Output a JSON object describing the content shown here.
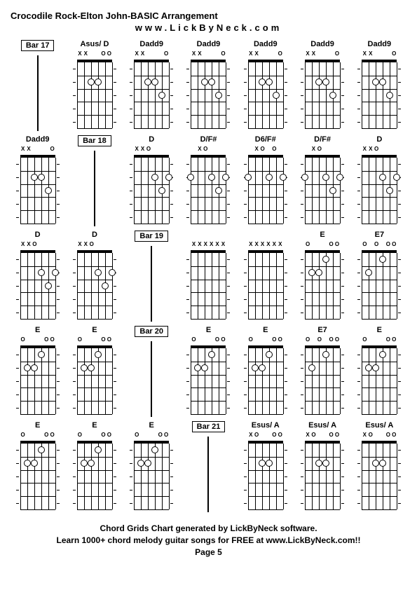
{
  "header": {
    "title": "Crocodile Rock-Elton John-BASIC Arrangement",
    "url": "www.LickByNeck.com"
  },
  "footer": {
    "line1": "Chord Grids Chart generated by LickByNeck software.",
    "line2": "Learn 1000+ chord melody guitar songs for FREE at www.LickByNeck.com!!",
    "page": "Page 5"
  },
  "diagram_style": {
    "num_frets": 5,
    "num_strings": 6,
    "nut_color": "#000000",
    "grid_color": "#000000",
    "dot_fill": "#ffffff",
    "dot_border": "#000000"
  },
  "cells": [
    {
      "type": "bar",
      "label": "Bar 17"
    },
    {
      "type": "chord",
      "label": "Asus/ D",
      "marks": [
        "X",
        "X",
        "",
        "",
        "O",
        "O"
      ],
      "dots": [
        [
          3,
          2
        ],
        [
          4,
          2
        ]
      ]
    },
    {
      "type": "chord",
      "label": "Dadd9",
      "marks": [
        "X",
        "X",
        "",
        "",
        "",
        "O"
      ],
      "dots": [
        [
          3,
          2
        ],
        [
          4,
          2
        ],
        [
          5,
          3
        ]
      ]
    },
    {
      "type": "chord",
      "label": "Dadd9",
      "marks": [
        "X",
        "X",
        "",
        "",
        "",
        "O"
      ],
      "dots": [
        [
          3,
          2
        ],
        [
          4,
          2
        ],
        [
          5,
          3
        ]
      ]
    },
    {
      "type": "chord",
      "label": "Dadd9",
      "marks": [
        "X",
        "X",
        "",
        "",
        "",
        "O"
      ],
      "dots": [
        [
          3,
          2
        ],
        [
          4,
          2
        ],
        [
          5,
          3
        ]
      ]
    },
    {
      "type": "chord",
      "label": "Dadd9",
      "marks": [
        "X",
        "X",
        "",
        "",
        "",
        "O"
      ],
      "dots": [
        [
          3,
          2
        ],
        [
          4,
          2
        ],
        [
          5,
          3
        ]
      ]
    },
    {
      "type": "chord",
      "label": "Dadd9",
      "marks": [
        "X",
        "X",
        "",
        "",
        "",
        "O"
      ],
      "dots": [
        [
          3,
          2
        ],
        [
          4,
          2
        ],
        [
          5,
          3
        ]
      ]
    },
    {
      "type": "chord",
      "label": "Dadd9",
      "marks": [
        "X",
        "X",
        "",
        "",
        "",
        "O"
      ],
      "dots": [
        [
          3,
          2
        ],
        [
          4,
          2
        ],
        [
          5,
          3
        ]
      ]
    },
    {
      "type": "bar",
      "label": "Bar 18"
    },
    {
      "type": "chord",
      "label": "D",
      "marks": [
        "X",
        "X",
        "O",
        "",
        "",
        ""
      ],
      "dots": [
        [
          4,
          2
        ],
        [
          5,
          3
        ],
        [
          6,
          2
        ]
      ]
    },
    {
      "type": "chord",
      "label": "D/F#",
      "marks": [
        "",
        "X",
        "O",
        "",
        "",
        ""
      ],
      "dots": [
        [
          1,
          2
        ],
        [
          4,
          2
        ],
        [
          5,
          3
        ],
        [
          6,
          2
        ]
      ]
    },
    {
      "type": "chord",
      "label": "D6/F#",
      "marks": [
        "",
        "X",
        "O",
        "",
        "O",
        ""
      ],
      "dots": [
        [
          1,
          2
        ],
        [
          4,
          2
        ],
        [
          6,
          2
        ]
      ]
    },
    {
      "type": "chord",
      "label": "D/F#",
      "marks": [
        "",
        "X",
        "O",
        "",
        "",
        ""
      ],
      "dots": [
        [
          1,
          2
        ],
        [
          4,
          2
        ],
        [
          5,
          3
        ],
        [
          6,
          2
        ]
      ]
    },
    {
      "type": "chord",
      "label": "D",
      "marks": [
        "X",
        "X",
        "O",
        "",
        "",
        ""
      ],
      "dots": [
        [
          4,
          2
        ],
        [
          5,
          3
        ],
        [
          6,
          2
        ]
      ]
    },
    {
      "type": "chord",
      "label": "D",
      "marks": [
        "X",
        "X",
        "O",
        "",
        "",
        ""
      ],
      "dots": [
        [
          4,
          2
        ],
        [
          5,
          3
        ],
        [
          6,
          2
        ]
      ]
    },
    {
      "type": "chord",
      "label": "D",
      "marks": [
        "X",
        "X",
        "O",
        "",
        "",
        ""
      ],
      "dots": [
        [
          4,
          2
        ],
        [
          5,
          3
        ],
        [
          6,
          2
        ]
      ]
    },
    {
      "type": "bar",
      "label": "Bar 19"
    },
    {
      "type": "chord",
      "label": "",
      "marks": [
        "X",
        "X",
        "X",
        "X",
        "X",
        "X"
      ],
      "dots": []
    },
    {
      "type": "chord",
      "label": "",
      "marks": [
        "X",
        "X",
        "X",
        "X",
        "X",
        "X"
      ],
      "dots": []
    },
    {
      "type": "chord",
      "label": "E",
      "marks": [
        "O",
        "",
        "",
        "",
        "O",
        "O"
      ],
      "dots": [
        [
          2,
          2
        ],
        [
          3,
          2
        ],
        [
          4,
          1
        ]
      ]
    },
    {
      "type": "chord",
      "label": "E7",
      "marks": [
        "O",
        "",
        "O",
        "",
        "O",
        "O"
      ],
      "dots": [
        [
          2,
          2
        ],
        [
          4,
          1
        ]
      ]
    },
    {
      "type": "chord",
      "label": "E",
      "marks": [
        "O",
        "",
        "",
        "",
        "O",
        "O"
      ],
      "dots": [
        [
          2,
          2
        ],
        [
          3,
          2
        ],
        [
          4,
          1
        ]
      ]
    },
    {
      "type": "chord",
      "label": "E",
      "marks": [
        "O",
        "",
        "",
        "",
        "O",
        "O"
      ],
      "dots": [
        [
          2,
          2
        ],
        [
          3,
          2
        ],
        [
          4,
          1
        ]
      ]
    },
    {
      "type": "bar",
      "label": "Bar 20"
    },
    {
      "type": "chord",
      "label": "E",
      "marks": [
        "O",
        "",
        "",
        "",
        "O",
        "O"
      ],
      "dots": [
        [
          2,
          2
        ],
        [
          3,
          2
        ],
        [
          4,
          1
        ]
      ]
    },
    {
      "type": "chord",
      "label": "E",
      "marks": [
        "O",
        "",
        "",
        "",
        "O",
        "O"
      ],
      "dots": [
        [
          2,
          2
        ],
        [
          3,
          2
        ],
        [
          4,
          1
        ]
      ]
    },
    {
      "type": "chord",
      "label": "E7",
      "marks": [
        "O",
        "",
        "O",
        "",
        "O",
        "O"
      ],
      "dots": [
        [
          2,
          2
        ],
        [
          4,
          1
        ]
      ]
    },
    {
      "type": "chord",
      "label": "E",
      "marks": [
        "O",
        "",
        "",
        "",
        "O",
        "O"
      ],
      "dots": [
        [
          2,
          2
        ],
        [
          3,
          2
        ],
        [
          4,
          1
        ]
      ]
    },
    {
      "type": "chord",
      "label": "E",
      "marks": [
        "O",
        "",
        "",
        "",
        "O",
        "O"
      ],
      "dots": [
        [
          2,
          2
        ],
        [
          3,
          2
        ],
        [
          4,
          1
        ]
      ]
    },
    {
      "type": "chord",
      "label": "E",
      "marks": [
        "O",
        "",
        "",
        "",
        "O",
        "O"
      ],
      "dots": [
        [
          2,
          2
        ],
        [
          3,
          2
        ],
        [
          4,
          1
        ]
      ]
    },
    {
      "type": "chord",
      "label": "E",
      "marks": [
        "O",
        "",
        "",
        "",
        "O",
        "O"
      ],
      "dots": [
        [
          2,
          2
        ],
        [
          3,
          2
        ],
        [
          4,
          1
        ]
      ]
    },
    {
      "type": "bar",
      "label": "Bar 21"
    },
    {
      "type": "chord",
      "label": "Esus/ A",
      "marks": [
        "X",
        "O",
        "",
        "",
        "O",
        "O"
      ],
      "dots": [
        [
          3,
          2
        ],
        [
          4,
          2
        ]
      ]
    },
    {
      "type": "chord",
      "label": "Esus/ A",
      "marks": [
        "X",
        "O",
        "",
        "",
        "O",
        "O"
      ],
      "dots": [
        [
          3,
          2
        ],
        [
          4,
          2
        ]
      ]
    },
    {
      "type": "chord",
      "label": "Esus/ A",
      "marks": [
        "X",
        "O",
        "",
        "",
        "O",
        "O"
      ],
      "dots": [
        [
          3,
          2
        ],
        [
          4,
          2
        ]
      ]
    }
  ]
}
